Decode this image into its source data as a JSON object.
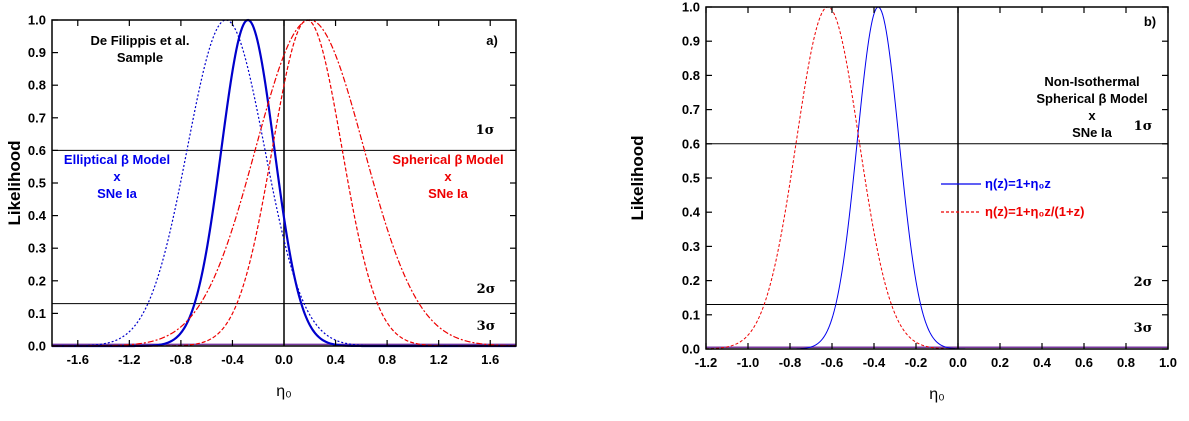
{
  "chart_data": [
    {
      "type": "line",
      "panel_label": "a)",
      "xlabel": "η₀",
      "ylabel": "Likelihood",
      "xlim": [
        -1.8,
        1.8
      ],
      "ylim": [
        0,
        1.0
      ],
      "xticks": [
        "-1.6",
        "-1.2",
        "-0.8",
        "-0.4",
        "0.0",
        "0.4",
        "0.8",
        "1.2",
        "1.6"
      ],
      "yticks": [
        "0.0",
        "0.1",
        "0.2",
        "0.3",
        "0.4",
        "0.5",
        "0.6",
        "0.7",
        "0.8",
        "0.9",
        "1.0"
      ],
      "hlines": [
        0.6,
        0.13,
        0.005
      ],
      "vline": 0.0,
      "sigma_labels": [
        "1σ",
        "2σ",
        "3σ"
      ],
      "annotations": [
        {
          "lines": [
            "De Filippis et al.",
            "Sample"
          ],
          "color": "#000000"
        },
        {
          "lines": [
            "Elliptical β Model",
            "x",
            "SNe Ia"
          ],
          "color": "#0000ee"
        },
        {
          "lines": [
            "Spherical β Model",
            "x",
            "SNe Ia"
          ],
          "color": "#ee0000"
        }
      ],
      "series": [
        {
          "color": "#0000cc",
          "dash": "",
          "width": 2.2,
          "mu": -0.28,
          "sigma": 0.205
        },
        {
          "color": "#0000cc",
          "dash": "2,2",
          "width": 1.2,
          "mu": -0.45,
          "sigma": 0.3
        },
        {
          "color": "#ee0000",
          "dash": "4,2",
          "width": 1.2,
          "mu": 0.18,
          "sigma": 0.27
        },
        {
          "color": "#ee0000",
          "dash": "6,2,2,2",
          "width": 1.2,
          "mu": 0.2,
          "sigma": 0.42
        }
      ]
    },
    {
      "type": "line",
      "panel_label": "b)",
      "xlabel": "η₀",
      "ylabel": "Likelihood",
      "xlim": [
        -1.2,
        1.0
      ],
      "ylim": [
        0,
        1.0
      ],
      "xticks": [
        "-1.2",
        "-1.0",
        "-0.8",
        "-0.6",
        "-0.4",
        "-0.2",
        "0.0",
        "0.2",
        "0.4",
        "0.6",
        "0.8",
        "1.0"
      ],
      "yticks": [
        "0.0",
        "0.1",
        "0.2",
        "0.3",
        "0.4",
        "0.5",
        "0.6",
        "0.7",
        "0.8",
        "0.9",
        "1.0"
      ],
      "hlines": [
        0.6,
        0.13,
        0.005
      ],
      "vline": 0.0,
      "sigma_labels": [
        "1σ",
        "2σ",
        "3σ"
      ],
      "annotations": [
        {
          "lines": [
            "Non-Isothermal",
            "Spherical β Model",
            "x",
            "SNe Ia"
          ],
          "color": "#000000"
        }
      ],
      "legend": [
        {
          "name": "η(z)=1+η₀z",
          "color": "#0000ee",
          "dash": ""
        },
        {
          "name": "η(z)=1+η₀z/(1+z)",
          "color": "#ee0000",
          "dash": "3,2"
        }
      ],
      "series": [
        {
          "name": "η(z)=1+η₀z",
          "color": "#0000ee",
          "dash": "",
          "width": 1.0,
          "mu": -0.38,
          "sigma": 0.1
        },
        {
          "name": "η(z)=1+η₀z/(1+z)",
          "color": "#ee0000",
          "dash": "3,2",
          "width": 1.0,
          "mu": -0.62,
          "sigma": 0.15
        }
      ]
    }
  ]
}
